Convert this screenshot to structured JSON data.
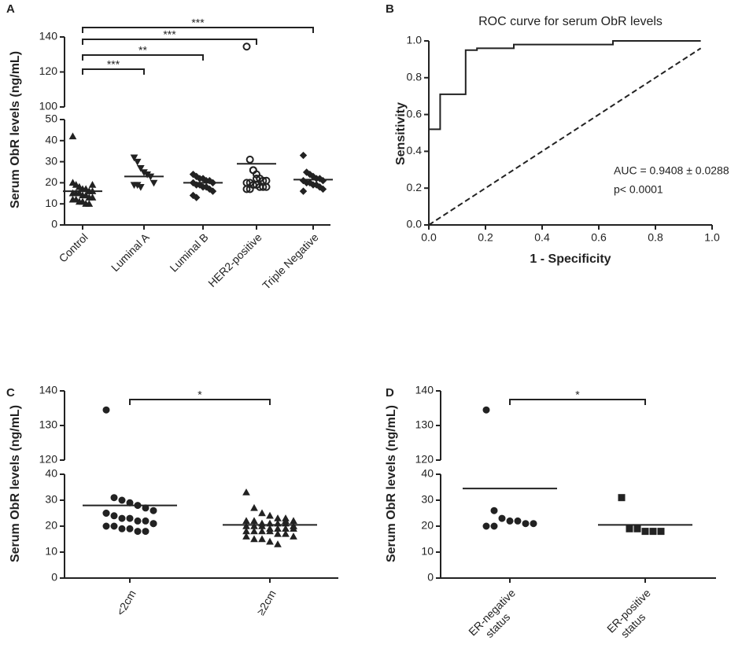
{
  "chart_data": [
    {
      "type": "dot",
      "panel": "A",
      "ylabel": "Serum ObR levels (ng/mL)",
      "categories": [
        "Control",
        "Luminal A",
        "Luminal B",
        "HER2-positive",
        "Triple Negative"
      ],
      "markers": [
        "triangle",
        "triangle-down",
        "diamond",
        "circle-open",
        "diamond"
      ],
      "values": [
        [
          42,
          19,
          18,
          17,
          17,
          16,
          16,
          15,
          15,
          15,
          14,
          14,
          13,
          13,
          12,
          12,
          11,
          11,
          10,
          10,
          19,
          20
        ],
        [
          32,
          30,
          27,
          25,
          24,
          23,
          20,
          19,
          19,
          18
        ],
        [
          24,
          23,
          22,
          22,
          21,
          21,
          20,
          20,
          19,
          19,
          18,
          18,
          17,
          16,
          14,
          13
        ],
        [
          134.5,
          31,
          26,
          24,
          22,
          21,
          21,
          20,
          20,
          19,
          19,
          18,
          18,
          18,
          17,
          17,
          26,
          22
        ],
        [
          33,
          25,
          24,
          23,
          22,
          22,
          21,
          21,
          20,
          20,
          19,
          19,
          18,
          17,
          16
        ]
      ],
      "means": [
        16,
        23,
        20,
        29,
        21.5
      ],
      "ylim": [
        0,
        50
      ],
      "yticks": [
        0,
        10,
        20,
        30,
        40,
        50
      ],
      "ylim_upper": [
        100,
        140
      ],
      "yticks_upper": [
        100,
        120,
        140
      ],
      "comparisons": [
        {
          "groups": [
            0,
            1
          ],
          "label": "***"
        },
        {
          "groups": [
            0,
            2
          ],
          "label": "**"
        },
        {
          "groups": [
            0,
            3
          ],
          "label": "***"
        },
        {
          "groups": [
            0,
            4
          ],
          "label": "***"
        }
      ]
    },
    {
      "type": "line",
      "panel": "B",
      "title": "ROC curve for serum ObR levels",
      "xlabel": "1 - Specificity",
      "ylabel": "Sensitivity",
      "x": [
        0,
        0.04,
        0.04,
        0.13,
        0.13,
        0.17,
        0.17,
        0.3,
        0.3,
        0.65,
        0.65,
        0.96
      ],
      "y": [
        0.52,
        0.52,
        0.71,
        0.71,
        0.95,
        0.95,
        0.96,
        0.96,
        0.98,
        0.98,
        1.0,
        1.0
      ],
      "reference": {
        "x": [
          0,
          0.96
        ],
        "y": [
          0,
          0.96
        ]
      },
      "xlim": [
        0,
        1
      ],
      "ylim": [
        0,
        1
      ],
      "xticks": [
        {
          "value": 0,
          "label": "0.0"
        },
        0.2,
        0.4,
        0.6,
        0.8,
        {
          "value": 1,
          "label": "1.0"
        }
      ],
      "yticks": [
        {
          "value": 0,
          "label": "0.0"
        },
        0.2,
        0.4,
        0.6,
        0.8,
        {
          "value": 1,
          "label": "1.0"
        }
      ],
      "annotations": [
        "AUC = 0.9408 ± 0.0288",
        "p< 0.0001"
      ]
    },
    {
      "type": "dot",
      "panel": "C",
      "ylabel": "Serum ObR levels (ng/mL)",
      "categories": [
        "<2cm",
        "≥2cm"
      ],
      "markers": [
        "circle",
        "triangle"
      ],
      "values": [
        [
          134.5,
          31,
          30,
          29,
          28,
          27,
          26,
          25,
          24,
          23,
          23,
          22,
          22,
          21,
          20,
          20,
          19,
          19,
          18,
          18,
          21,
          25
        ],
        [
          33,
          27,
          25,
          24,
          23,
          23,
          22,
          22,
          22,
          21,
          21,
          21,
          21,
          20,
          20,
          20,
          20,
          19,
          19,
          19,
          19,
          18,
          18,
          18,
          18,
          17,
          17,
          16,
          16,
          15,
          15,
          14,
          13,
          22,
          20
        ]
      ],
      "means": [
        28,
        20.5
      ],
      "ylim": [
        0,
        40
      ],
      "yticks": [
        0,
        10,
        20,
        30,
        40
      ],
      "ylim_upper": [
        120,
        140
      ],
      "yticks_upper": [
        120,
        130,
        140
      ],
      "comparisons": [
        {
          "groups": [
            0,
            1
          ],
          "label": "*"
        }
      ]
    },
    {
      "type": "dot",
      "panel": "D",
      "ylabel": "Serum ObR levels (ng/mL)",
      "categories": [
        [
          "ER-negative",
          "status"
        ],
        [
          "ER-positive",
          "status"
        ]
      ],
      "markers": [
        "circle",
        "square"
      ],
      "values": [
        [
          134.5,
          26,
          23,
          22,
          22,
          21,
          21,
          20,
          20
        ],
        [
          31,
          19,
          19,
          18,
          18,
          18
        ]
      ],
      "means": [
        34.5,
        20.5
      ],
      "ylim": [
        0,
        40
      ],
      "yticks": [
        0,
        10,
        20,
        30,
        40
      ],
      "ylim_upper": [
        120,
        140
      ],
      "yticks_upper": [
        120,
        130,
        140
      ],
      "comparisons": [
        {
          "groups": [
            0,
            1
          ],
          "label": "*"
        }
      ]
    }
  ]
}
